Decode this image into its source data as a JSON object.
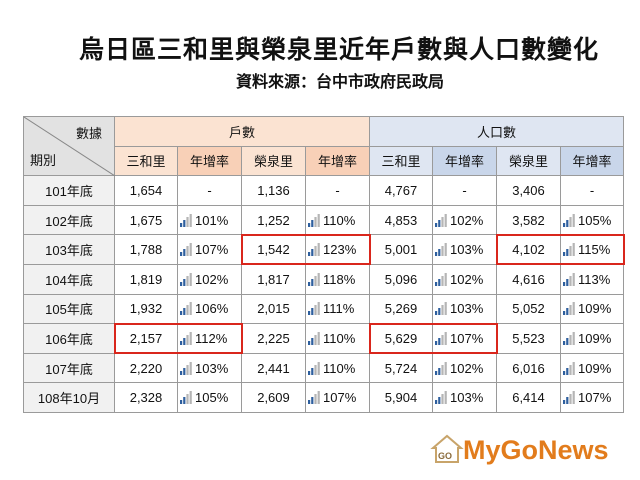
{
  "title": "烏日區三和里與榮泉里近年戶數與人口數變化",
  "source": "資料來源：台中市政府民政局",
  "corner": {
    "top": "數據",
    "bottom": "期別"
  },
  "groups": {
    "households": "戶數",
    "population": "人口數"
  },
  "subheaders": [
    "三和里",
    "年增率",
    "榮泉里",
    "年增率",
    "三和里",
    "年增率",
    "榮泉里",
    "年增率"
  ],
  "rows": [
    {
      "period": "101年底",
      "cells": [
        "1,654",
        "-",
        "1,136",
        "-",
        "4,767",
        "-",
        "3,406",
        "-"
      ]
    },
    {
      "period": "102年底",
      "cells": [
        "1,675",
        "101%",
        "1,252",
        "110%",
        "4,853",
        "102%",
        "3,582",
        "105%"
      ]
    },
    {
      "period": "103年底",
      "cells": [
        "1,788",
        "107%",
        "1,542",
        "123%",
        "5,001",
        "103%",
        "4,102",
        "115%"
      ]
    },
    {
      "period": "104年底",
      "cells": [
        "1,819",
        "102%",
        "1,817",
        "118%",
        "5,096",
        "102%",
        "4,616",
        "113%"
      ]
    },
    {
      "period": "105年底",
      "cells": [
        "1,932",
        "106%",
        "2,015",
        "111%",
        "5,269",
        "103%",
        "5,052",
        "109%"
      ]
    },
    {
      "period": "106年底",
      "cells": [
        "2,157",
        "112%",
        "2,225",
        "110%",
        "5,629",
        "107%",
        "5,523",
        "109%"
      ]
    },
    {
      "period": "107年底",
      "cells": [
        "2,220",
        "103%",
        "2,441",
        "110%",
        "5,724",
        "102%",
        "6,016",
        "109%"
      ]
    },
    {
      "period": "108年10月",
      "cells": [
        "2,328",
        "105%",
        "2,609",
        "107%",
        "5,904",
        "103%",
        "6,414",
        "107%"
      ]
    }
  ],
  "icon": {
    "name": "signal-bars-icon",
    "active": "#2e5f9e",
    "inactive": "#b5b5b5"
  },
  "highlight_color": "#d9261c",
  "logo": {
    "text": "MyGoNews",
    "mark": "GO",
    "color": "#e27c1c"
  }
}
